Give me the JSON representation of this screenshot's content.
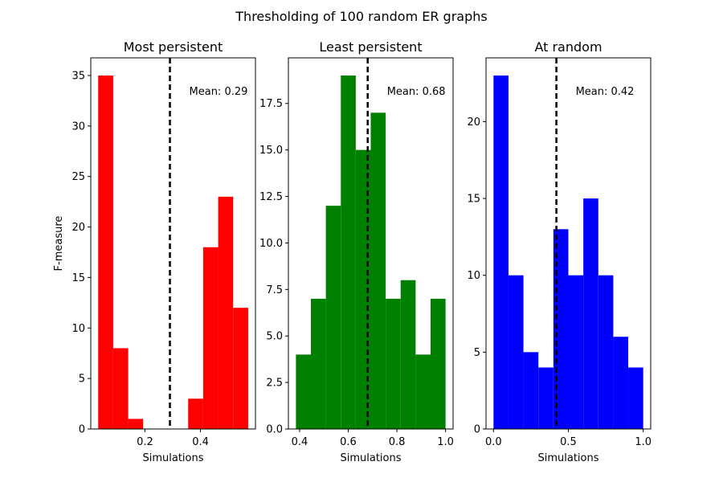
{
  "suptitle": "Thresholding of 100 random ER graphs",
  "colors": {
    "red": "#ff0000",
    "green": "#008000",
    "blue": "#0000ff"
  },
  "chart_data": [
    {
      "type": "bar",
      "title": "Most persistent",
      "xlabel": "Simulations",
      "ylabel": "F-measure",
      "color": "red",
      "bin_edges": [
        0.0317,
        0.0857,
        0.1397,
        0.1937,
        0.2477,
        0.3017,
        0.3557,
        0.4097,
        0.4637,
        0.5177,
        0.5717
      ],
      "values": [
        35,
        8,
        1,
        0,
        0,
        0,
        3,
        18,
        23,
        12
      ],
      "mean": 0.29,
      "mean_label": "Mean: 0.29",
      "xlim": [
        0.005,
        0.598
      ],
      "ylim": [
        0,
        36.75
      ],
      "xticks": [
        0.2,
        0.4
      ],
      "xtick_labels": [
        "0.2",
        "0.4"
      ],
      "yticks": [
        0,
        5,
        10,
        15,
        20,
        25,
        30,
        35
      ],
      "ytick_labels": [
        "0",
        "5",
        "10",
        "15",
        "20",
        "25",
        "30",
        "35"
      ],
      "grid": false
    },
    {
      "type": "bar",
      "title": "Least persistent",
      "xlabel": "Simulations",
      "ylabel": "",
      "color": "green",
      "bin_edges": [
        0.385,
        0.4465,
        0.508,
        0.5695,
        0.631,
        0.6925,
        0.754,
        0.8155,
        0.877,
        0.9385,
        1.0
      ],
      "values": [
        4,
        7,
        12,
        19,
        15,
        17,
        7,
        8,
        4,
        7
      ],
      "mean": 0.68,
      "mean_label": "Mean: 0.68",
      "xlim": [
        0.354,
        1.031
      ],
      "ylim": [
        0,
        19.95
      ],
      "xticks": [
        0.4,
        0.6,
        0.8,
        1.0
      ],
      "xtick_labels": [
        "0.4",
        "0.6",
        "0.8",
        "1.0"
      ],
      "yticks": [
        0,
        2.5,
        5,
        7.5,
        10,
        12.5,
        15,
        17.5
      ],
      "ytick_labels": [
        "0.0",
        "2.5",
        "5.0",
        "7.5",
        "10.0",
        "12.5",
        "15.0",
        "17.5"
      ],
      "grid": false
    },
    {
      "type": "bar",
      "title": "At random",
      "xlabel": "Simulations",
      "ylabel": "",
      "color": "blue",
      "bin_edges": [
        0.0,
        0.1,
        0.2,
        0.3,
        0.4,
        0.5,
        0.6,
        0.7,
        0.8,
        0.9,
        1.0
      ],
      "values": [
        23,
        10,
        5,
        4,
        13,
        10,
        15,
        10,
        6,
        4
      ],
      "mean": 0.42,
      "mean_label": "Mean: 0.42",
      "xlim": [
        -0.05,
        1.05
      ],
      "ylim": [
        0,
        24.15
      ],
      "xticks": [
        0.0,
        0.5,
        1.0
      ],
      "xtick_labels": [
        "0.0",
        "0.5",
        "1.0"
      ],
      "yticks": [
        0,
        5,
        10,
        15,
        20
      ],
      "ytick_labels": [
        "0",
        "5",
        "10",
        "15",
        "20"
      ],
      "grid": false
    }
  ]
}
